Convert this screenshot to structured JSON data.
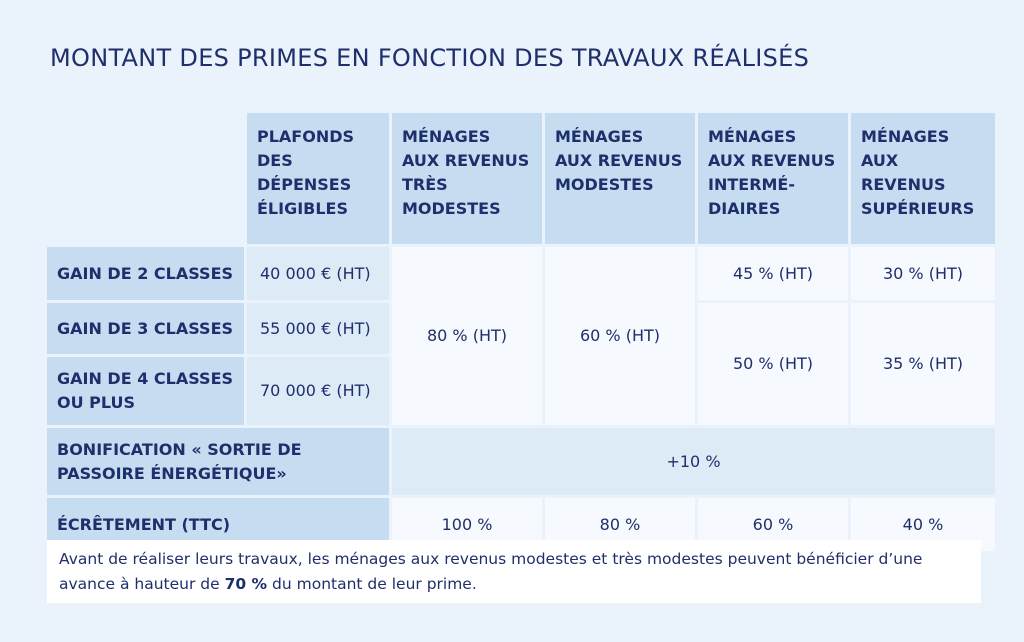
{
  "title": "MONTANT DES PRIMES EN FONCTION DES TRAVAUX RÉALISÉS",
  "columns": {
    "plafonds": "PLAFONDS DES DÉPENSES ÉLIGIBLES",
    "tres_modestes": "MÉNAGES AUX REVENUS TRÈS MODESTES",
    "modestes": "MÉNAGES AUX REVENUS MODESTES",
    "intermediaires": "MÉNAGES AUX REVENUS INTERMÉ-DIAIRES",
    "superieurs": "MÉNAGES AUX REVENUS SUPÉRIEURS"
  },
  "rows": {
    "gain2": {
      "label": "GAIN DE 2 CLASSES",
      "plafond": "40 000 € (HT)",
      "intermediaires": "45 % (HT)",
      "superieurs": "30 % (HT)"
    },
    "gain3": {
      "label": "GAIN DE 3 CLASSES",
      "plafond": "55 000 € (HT)"
    },
    "gain4": {
      "label": "GAIN DE 4 CLASSES OU PLUS",
      "plafond": "70 000 € (HT)"
    },
    "gain34": {
      "intermediaires": "50 % (HT)",
      "superieurs": "35 % (HT)"
    },
    "gain_all": {
      "tres_modestes": "80 % (HT)",
      "modestes": "60 % (HT)"
    },
    "bonification": {
      "label": "BONIFICATION « SORTIE DE PASSOIRE ÉNERGÉTIQUE»",
      "value": "+10 %"
    },
    "ecretement": {
      "label": "ÉCRÊTEMENT (TTC)",
      "tres_modestes": "100 %",
      "modestes": "80 %",
      "intermediaires": "60 %",
      "superieurs": "40 %"
    }
  },
  "footer": {
    "text_before": "Avant de réaliser leurs travaux, les ménages aux revenus modestes et très modestes peuvent bénéficier d’une avance à hauteur de ",
    "highlight": "70 %",
    "text_after": " du montant de leur prime."
  }
}
